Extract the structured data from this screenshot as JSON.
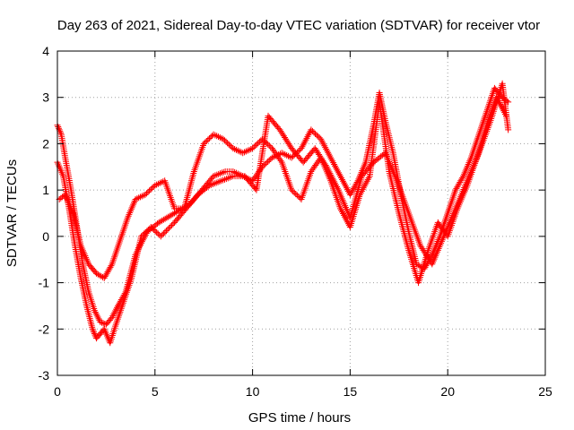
{
  "chart_data": {
    "type": "scatter",
    "title": "Day 263 of 2021, Sidereal Day-to-day VTEC variation (SDTVAR) for receiver vtor",
    "xlabel": "GPS time / hours",
    "ylabel": "SDTVAR / TECUs",
    "xlim": [
      0,
      25
    ],
    "ylim": [
      -3,
      4
    ],
    "xticks": [
      "0",
      "5",
      "10",
      "15",
      "20",
      "25"
    ],
    "yticks": [
      "-3",
      "-2",
      "-1",
      "0",
      "1",
      "2",
      "3",
      "4"
    ],
    "grid": true,
    "marker": "+",
    "marker_color": "#ff0000",
    "series": [
      {
        "x": [
          0.0,
          0.2,
          0.4,
          0.7,
          1.0,
          1.3,
          1.6,
          1.9,
          2.2,
          2.5,
          2.8,
          3.1,
          3.5,
          4.0,
          4.6,
          5.2,
          6.0,
          6.8,
          7.4,
          8.0,
          8.6,
          9.0,
          9.5,
          10.0,
          10.5,
          11.0,
          11.5,
          12.0,
          12.5,
          13.0,
          13.5,
          14.0,
          14.5,
          15.0,
          15.4,
          15.8,
          16.2,
          16.5,
          16.8,
          17.2,
          17.6,
          18.0,
          18.4,
          18.8,
          19.2,
          19.6,
          20.0,
          20.4,
          20.8,
          21.2,
          21.6,
          22.0,
          22.4,
          22.8,
          23.1
        ],
        "y": [
          2.4,
          2.2,
          1.7,
          1.0,
          0.2,
          -0.6,
          -1.2,
          -1.6,
          -1.85,
          -1.9,
          -1.75,
          -1.5,
          -1.2,
          -0.4,
          0.1,
          0.3,
          0.5,
          0.7,
          1.0,
          1.3,
          1.4,
          1.4,
          1.3,
          1.2,
          1.5,
          1.7,
          1.8,
          1.7,
          1.9,
          2.3,
          2.1,
          1.7,
          1.3,
          0.9,
          1.2,
          1.6,
          2.4,
          3.1,
          2.5,
          1.8,
          0.9,
          0.1,
          -0.6,
          -0.7,
          -0.4,
          0.0,
          0.5,
          1.0,
          1.3,
          1.7,
          2.2,
          2.7,
          3.2,
          3.0,
          2.9
        ]
      },
      {
        "x": [
          0.0,
          0.3,
          0.6,
          0.9,
          1.2,
          1.5,
          1.8,
          2.0,
          2.4,
          2.7,
          3.0,
          3.4,
          3.8,
          4.3,
          4.8,
          5.3,
          6.0,
          6.6,
          7.2,
          7.8,
          8.4,
          9.0,
          9.6,
          10.2,
          10.8,
          11.4,
          12.0,
          12.6,
          13.2,
          13.8,
          14.4,
          15.0,
          15.6,
          16.2,
          16.8,
          17.4,
          18.0,
          18.6,
          19.2,
          19.8,
          20.4,
          21.0,
          21.6,
          22.2,
          22.8,
          23.1
        ],
        "y": [
          1.6,
          1.3,
          0.6,
          -0.2,
          -0.9,
          -1.5,
          -2.0,
          -2.2,
          -2.0,
          -2.3,
          -1.9,
          -1.4,
          -0.9,
          0.0,
          0.2,
          0.0,
          0.3,
          0.6,
          0.9,
          1.1,
          1.2,
          1.3,
          1.3,
          1.0,
          2.6,
          2.3,
          1.9,
          1.6,
          1.9,
          1.5,
          1.0,
          0.4,
          1.3,
          1.6,
          1.8,
          1.2,
          0.5,
          -0.2,
          -0.6,
          0.0,
          0.6,
          1.2,
          1.8,
          2.5,
          3.3,
          2.3
        ]
      },
      {
        "x": [
          0.1,
          0.4,
          0.8,
          1.2,
          1.6,
          2.0,
          2.4,
          2.8,
          3.2,
          3.6,
          4.0,
          4.5,
          5.0,
          5.5,
          6.0,
          6.5,
          7.0,
          7.5,
          8.0,
          8.5,
          9.0,
          9.5,
          10.0,
          10.5,
          11.0,
          11.5,
          12.0,
          12.5,
          13.0,
          13.5,
          14.0,
          14.5,
          15.0,
          15.5,
          16.0,
          16.5,
          17.0,
          17.5,
          18.0,
          18.5,
          19.0,
          19.5,
          20.0,
          20.5,
          21.0,
          21.5,
          22.0,
          22.5,
          23.0
        ],
        "y": [
          0.8,
          0.9,
          0.5,
          -0.2,
          -0.6,
          -0.8,
          -0.9,
          -0.6,
          -0.1,
          0.4,
          0.8,
          0.9,
          1.1,
          1.2,
          0.6,
          0.6,
          1.4,
          2.0,
          2.2,
          2.1,
          1.9,
          1.8,
          1.9,
          2.1,
          1.9,
          1.6,
          1.0,
          0.8,
          1.4,
          1.7,
          1.2,
          0.6,
          0.2,
          0.9,
          1.3,
          2.9,
          1.4,
          0.5,
          -0.3,
          -1.0,
          -0.3,
          0.3,
          0.0,
          0.6,
          1.1,
          1.7,
          2.4,
          3.0,
          2.6
        ]
      }
    ]
  }
}
